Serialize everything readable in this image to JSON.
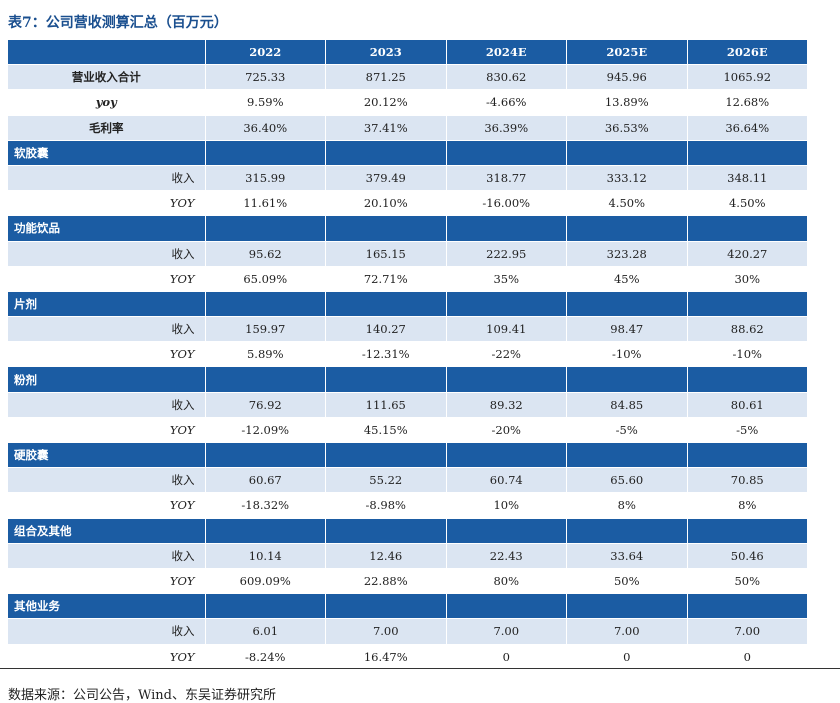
{
  "title": "表7：公司营收测算汇总（百万元）",
  "table": {
    "columns": [
      "2022",
      "2023",
      "2024E",
      "2025E",
      "2026E"
    ],
    "summary": [
      {
        "label": "营业收入合计",
        "values": [
          "725.33",
          "871.25",
          "830.62",
          "945.96",
          "1065.92"
        ]
      },
      {
        "label": "yoy",
        "values": [
          "9.59%",
          "20.12%",
          "-4.66%",
          "13.89%",
          "12.68%"
        ]
      },
      {
        "label": "毛利率",
        "values": [
          "36.40%",
          "37.41%",
          "36.39%",
          "36.53%",
          "36.64%"
        ]
      }
    ],
    "sections": [
      {
        "name": "软胶囊",
        "rows": [
          {
            "label": "收入",
            "values": [
              "315.99",
              "379.49",
              "318.77",
              "333.12",
              "348.11"
            ]
          },
          {
            "label": "YOY",
            "values": [
              "11.61%",
              "20.10%",
              "-16.00%",
              "4.50%",
              "4.50%"
            ]
          }
        ]
      },
      {
        "name": "功能饮品",
        "rows": [
          {
            "label": "收入",
            "values": [
              "95.62",
              "165.15",
              "222.95",
              "323.28",
              "420.27"
            ]
          },
          {
            "label": "YOY",
            "values": [
              "65.09%",
              "72.71%",
              "35%",
              "45%",
              "30%"
            ]
          }
        ]
      },
      {
        "name": "片剂",
        "rows": [
          {
            "label": "收入",
            "values": [
              "159.97",
              "140.27",
              "109.41",
              "98.47",
              "88.62"
            ]
          },
          {
            "label": "YOY",
            "values": [
              "5.89%",
              "-12.31%",
              "-22%",
              "-10%",
              "-10%"
            ]
          }
        ]
      },
      {
        "name": "粉剂",
        "rows": [
          {
            "label": "收入",
            "values": [
              "76.92",
              "111.65",
              "89.32",
              "84.85",
              "80.61"
            ]
          },
          {
            "label": "YOY",
            "values": [
              "-12.09%",
              "45.15%",
              "-20%",
              "-5%",
              "-5%"
            ]
          }
        ]
      },
      {
        "name": "硬胶囊",
        "rows": [
          {
            "label": "收入",
            "values": [
              "60.67",
              "55.22",
              "60.74",
              "65.60",
              "70.85"
            ]
          },
          {
            "label": "YOY",
            "values": [
              "-18.32%",
              "-8.98%",
              "10%",
              "8%",
              "8%"
            ]
          }
        ]
      },
      {
        "name": "组合及其他",
        "rows": [
          {
            "label": "收入",
            "values": [
              "10.14",
              "12.46",
              "22.43",
              "33.64",
              "50.46"
            ]
          },
          {
            "label": "YOY",
            "values": [
              "609.09%",
              "22.88%",
              "80%",
              "50%",
              "50%"
            ]
          }
        ]
      },
      {
        "name": "其他业务",
        "rows": [
          {
            "label": "收入",
            "values": [
              "6.01",
              "7.00",
              "7.00",
              "7.00",
              "7.00"
            ]
          },
          {
            "label": "YOY",
            "values": [
              "-8.24%",
              "16.47%",
              "0",
              "0",
              "0"
            ]
          }
        ]
      }
    ]
  },
  "source": "数据来源：公司公告，Wind、东吴证券研究所"
}
